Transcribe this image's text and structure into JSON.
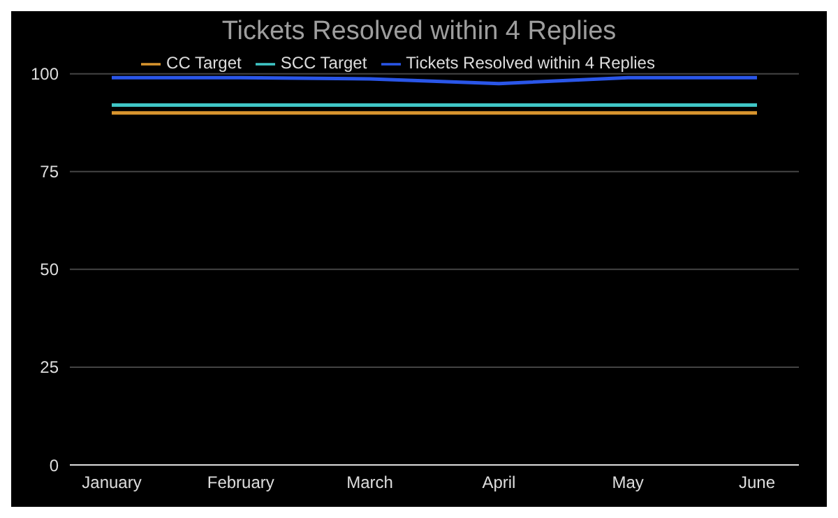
{
  "chart_data": {
    "type": "line",
    "title": "Tickets Resolved within 4 Replies",
    "categories": [
      "January",
      "February",
      "March",
      "April",
      "May",
      "June"
    ],
    "series": [
      {
        "name": "CC Target",
        "color": "#d9952e",
        "values": [
          90,
          90,
          90,
          90,
          90,
          90
        ]
      },
      {
        "name": "SCC Target",
        "color": "#3fc6c6",
        "values": [
          92,
          92,
          92,
          92,
          92,
          92
        ]
      },
      {
        "name": "Tickets Resolved within 4 Replies",
        "color": "#2a56e8",
        "values": [
          99,
          99,
          98.7,
          97.5,
          99,
          99
        ]
      }
    ],
    "ylim": [
      0,
      100
    ],
    "yticks": [
      0,
      25,
      50,
      75,
      100
    ],
    "grid": "y",
    "legend": "top",
    "marker": "none"
  }
}
